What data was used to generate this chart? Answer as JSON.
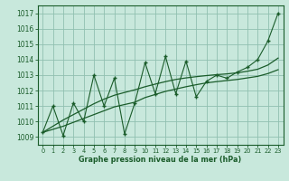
{
  "background_color": "#c8e8dc",
  "grid_color": "#90c0b0",
  "line_color": "#1a5c2a",
  "xlabel": "Graphe pression niveau de la mer (hPa)",
  "ylim": [
    1008.5,
    1017.5
  ],
  "xlim": [
    -0.5,
    23.5
  ],
  "yticks": [
    1009,
    1010,
    1011,
    1012,
    1013,
    1014,
    1015,
    1016,
    1017
  ],
  "xticks": [
    0,
    1,
    2,
    3,
    4,
    5,
    6,
    7,
    8,
    9,
    10,
    11,
    12,
    13,
    14,
    15,
    16,
    17,
    18,
    19,
    20,
    21,
    22,
    23
  ],
  "xtick_labels": [
    "0",
    "1",
    "2",
    "3",
    "4",
    "5",
    "6",
    "7",
    "8",
    "9",
    "10",
    "11",
    "12",
    "13",
    "14",
    "15",
    "16",
    "17",
    "18",
    "19",
    "20",
    "21",
    "22",
    "23"
  ],
  "pressure_values": [
    1009.3,
    1011.0,
    1009.1,
    1011.2,
    1010.0,
    1013.0,
    1011.0,
    1012.8,
    1009.2,
    1011.2,
    1013.8,
    1011.8,
    1014.2,
    1011.8,
    1013.9,
    1011.6,
    1012.6,
    1013.0,
    1012.8,
    1013.2,
    1013.5,
    1014.0,
    1015.2,
    1017.0
  ],
  "smooth_low": [
    1009.3,
    1009.5,
    1009.7,
    1009.95,
    1010.2,
    1010.45,
    1010.7,
    1010.95,
    1011.1,
    1011.25,
    1011.55,
    1011.75,
    1011.95,
    1012.1,
    1012.25,
    1012.38,
    1012.5,
    1012.58,
    1012.65,
    1012.72,
    1012.82,
    1012.92,
    1013.1,
    1013.35
  ],
  "smooth_high": [
    1009.3,
    1009.7,
    1010.1,
    1010.45,
    1010.8,
    1011.15,
    1011.45,
    1011.7,
    1011.88,
    1012.05,
    1012.25,
    1012.42,
    1012.58,
    1012.72,
    1012.82,
    1012.9,
    1012.97,
    1013.03,
    1013.08,
    1013.15,
    1013.25,
    1013.38,
    1013.65,
    1014.1
  ]
}
